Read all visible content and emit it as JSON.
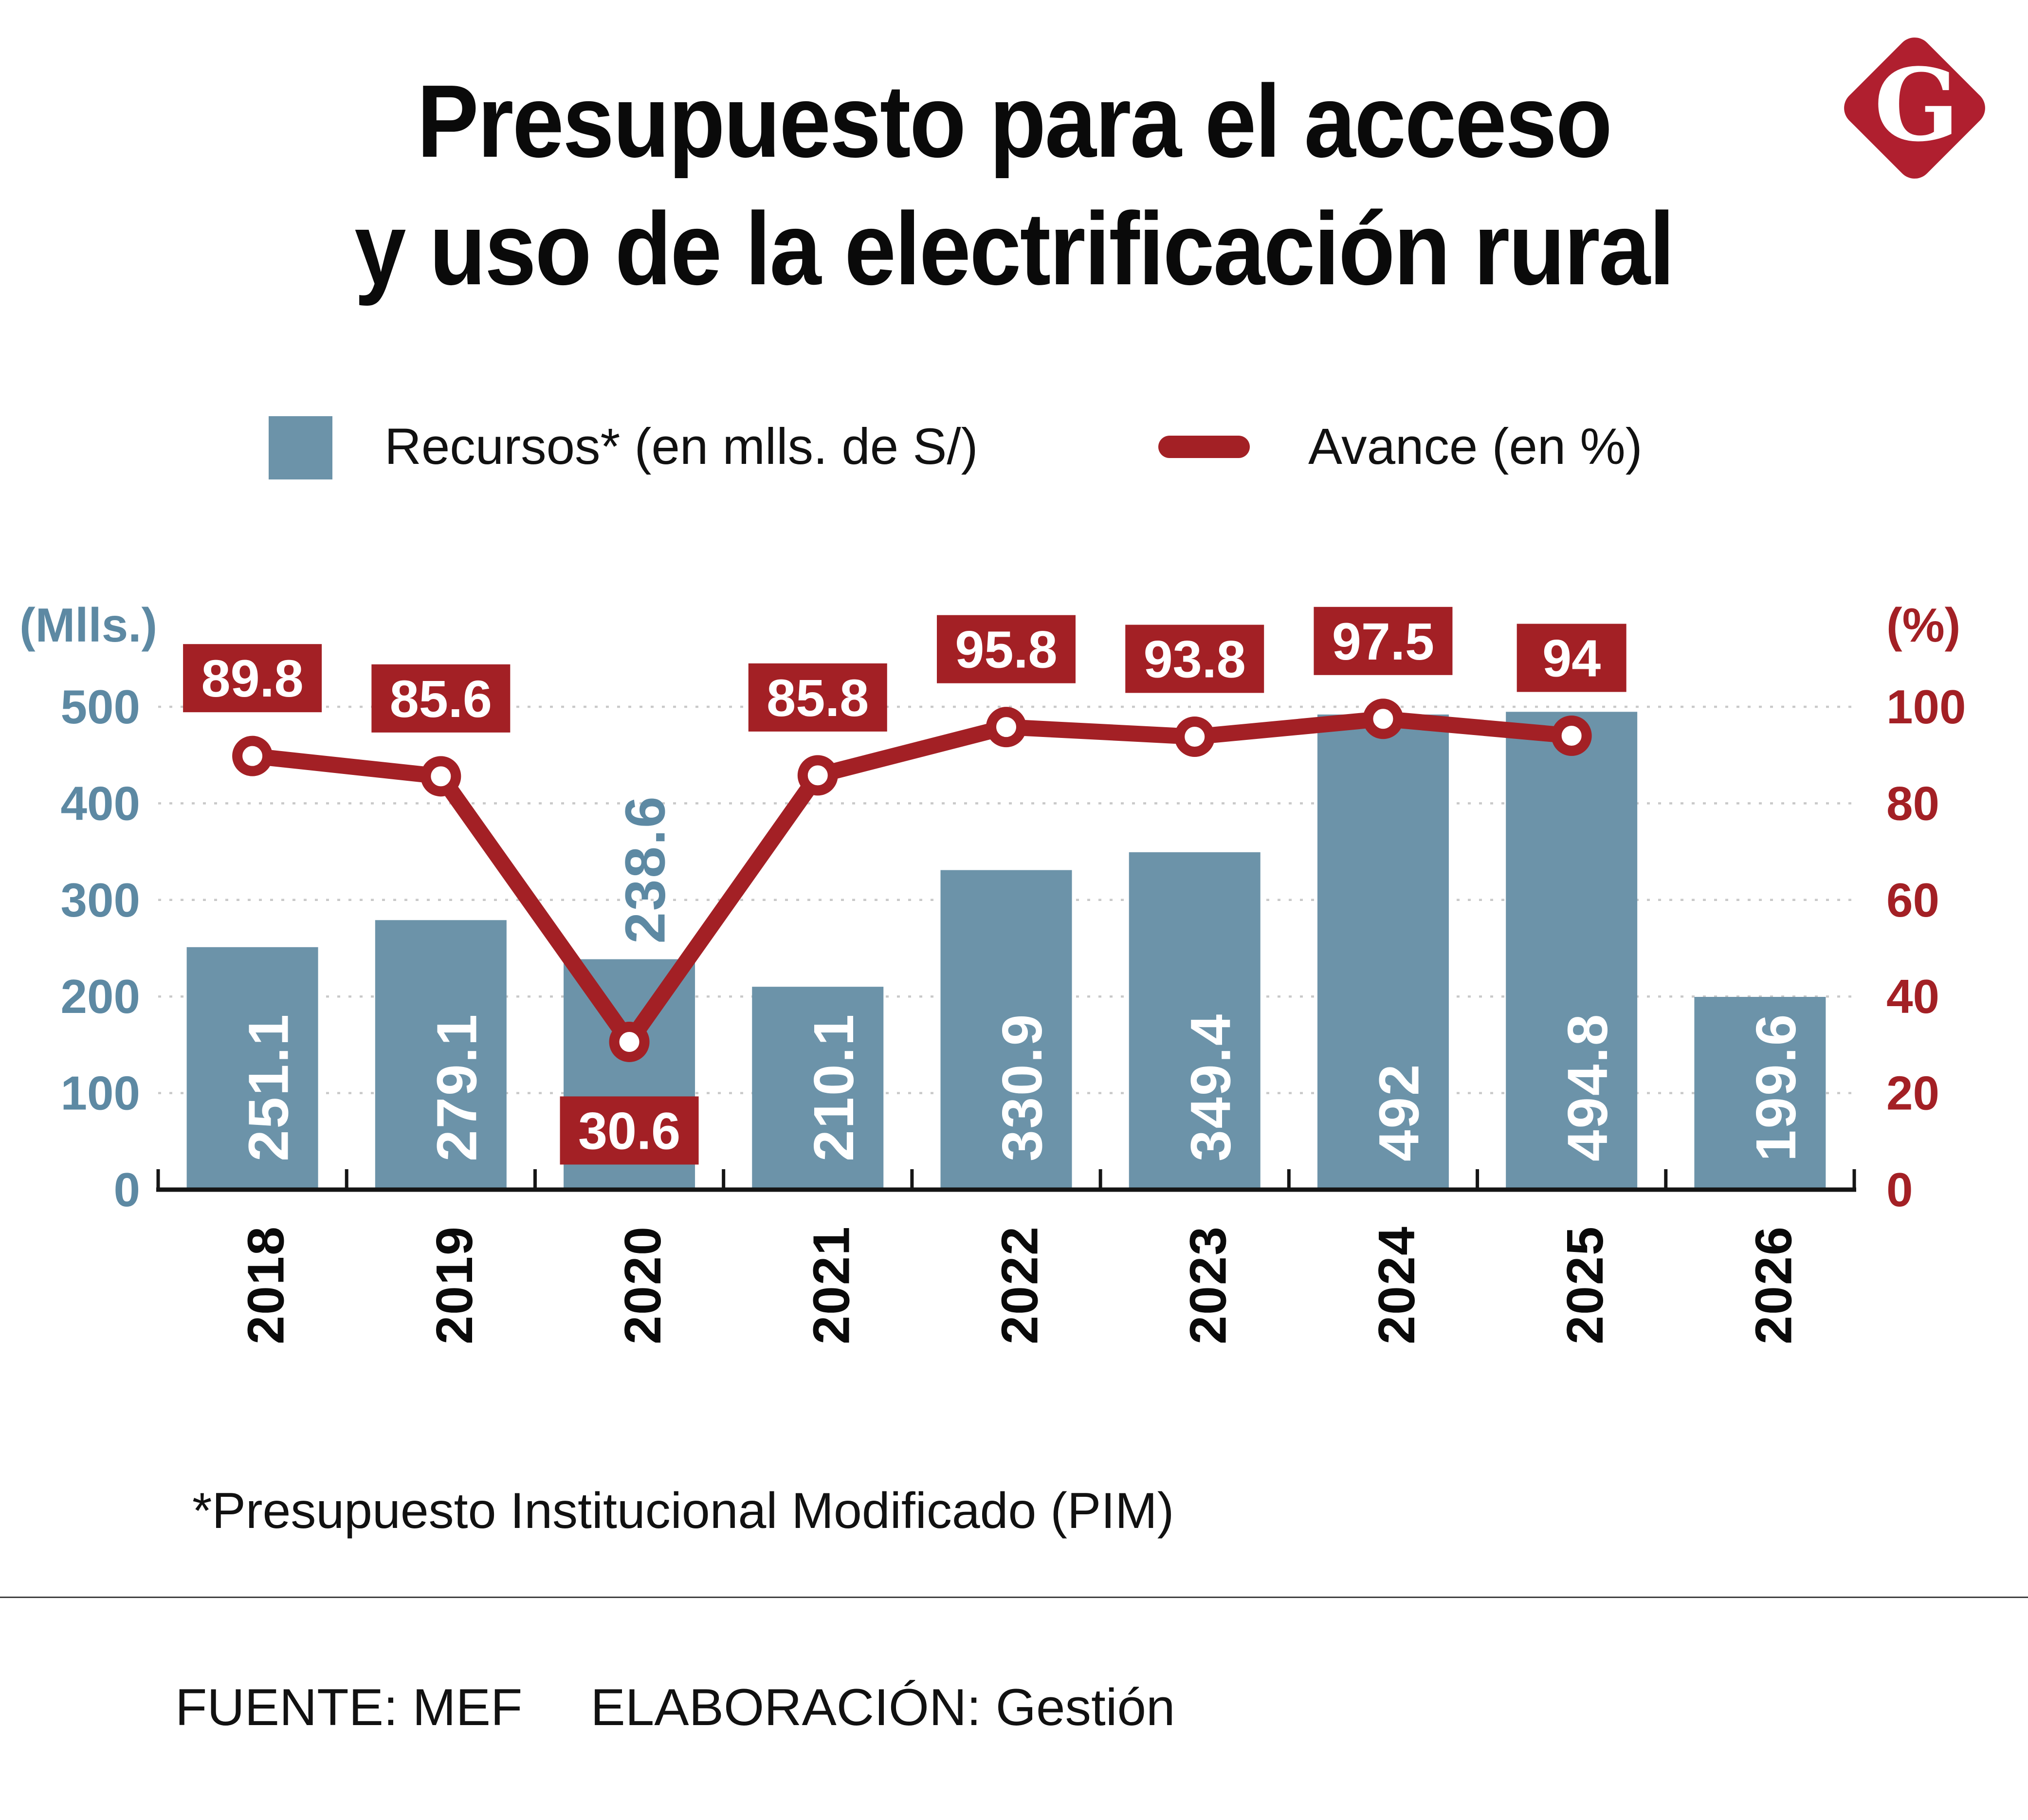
{
  "title": {
    "line1": "Presupuesto para el acceso",
    "line2": "y uso de la electrificación rural"
  },
  "logo": {
    "letter": "G"
  },
  "legend": {
    "bars": "Recursos* (en mlls. de S/)",
    "line": "Avance (en %)"
  },
  "footnote": "*Presupuesto Institucional Modificado (PIM)",
  "source": {
    "fuente": "FUENTE: MEF",
    "elaboracion": "ELABORACIÓN: Gestión"
  },
  "colors": {
    "bar": "#6c93a9",
    "blue_text": "#5d89a3",
    "red": "#a32025",
    "logo_red": "#b01f2f",
    "grid": "#c9c9c9",
    "axis_line": "#151515",
    "year_text": "#0a0a0a",
    "bar_label_text": "#ffffff",
    "box_label_text": "#ffffff"
  },
  "chart_data": {
    "type": "bar",
    "categories": [
      "2018",
      "2019",
      "2020",
      "2021",
      "2022",
      "2023",
      "2024",
      "2025",
      "2026"
    ],
    "series": [
      {
        "name": "Recursos* (en mlls. de S/)",
        "type": "bar",
        "axis": "left",
        "values": [
          251.1,
          279.1,
          238.6,
          210.1,
          330.9,
          349.4,
          492,
          494.8,
          199.6
        ],
        "labels": [
          "251.1",
          "279.1",
          "238.6",
          "210.1",
          "330.9",
          "349.4",
          "492",
          "494.8",
          "199.6"
        ]
      },
      {
        "name": "Avance (en %)",
        "type": "line",
        "axis": "right",
        "values": [
          89.8,
          85.6,
          30.6,
          85.8,
          95.8,
          93.8,
          97.5,
          94,
          null
        ],
        "labels": [
          "89.8",
          "85.6",
          "30.6",
          "85.8",
          "95.8",
          "93.8",
          "97.5",
          "94",
          null
        ]
      }
    ],
    "left_axis": {
      "title": "(Mlls.)",
      "min": 0,
      "max": 500,
      "ticks": [
        0,
        100,
        200,
        300,
        400,
        500
      ]
    },
    "right_axis": {
      "title": "(%)",
      "min": 0,
      "max": 100,
      "ticks": [
        0,
        20,
        40,
        60,
        80,
        100
      ]
    },
    "grid": "dotted horizontal",
    "legend_position": "top",
    "notes": {
      "bar_label_outside_year": "2020",
      "line_label_below_year": "2020",
      "line_has_no_point_for": "2026"
    }
  }
}
